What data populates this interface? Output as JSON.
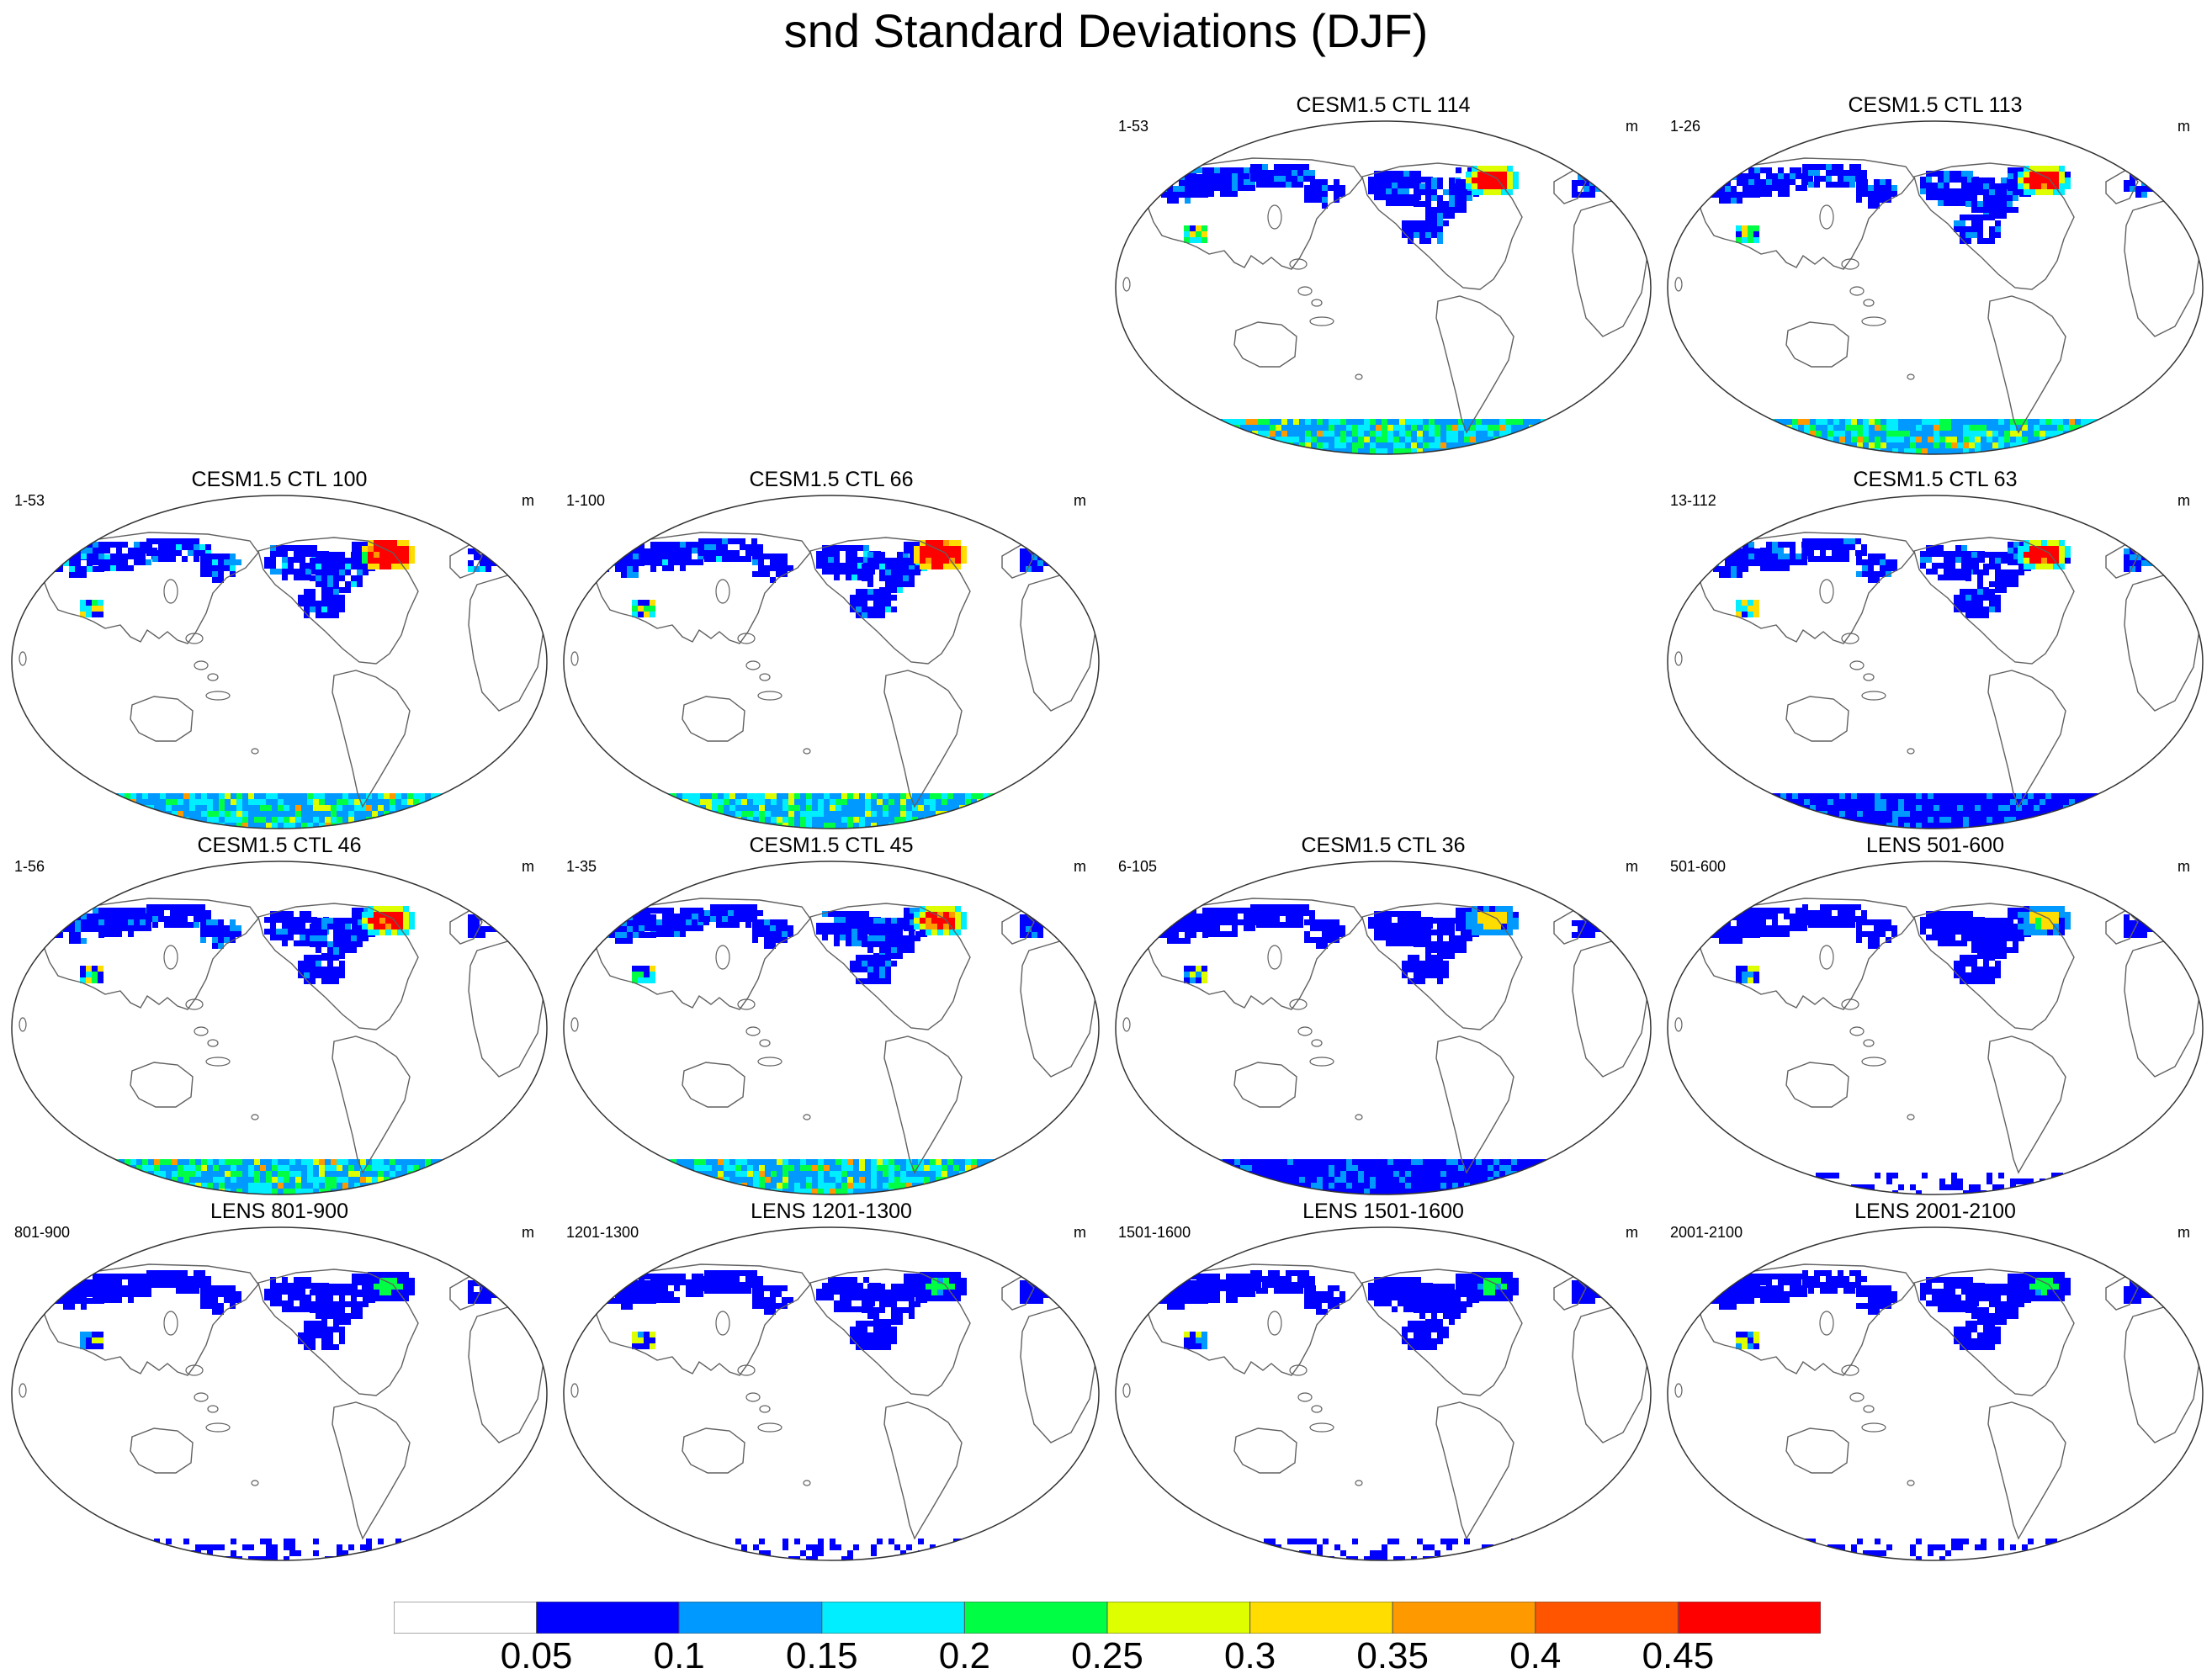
{
  "figure_title": "snd Standard Deviations (DJF)",
  "units_label": "m",
  "palette": {
    "land_outline": "#606060",
    "colors": [
      "#ffffff",
      "#0000ff",
      "#0099ff",
      "#00eeff",
      "#00ff44",
      "#ddff00",
      "#ffdd00",
      "#ff9900",
      "#ff5500",
      "#ff0000"
    ]
  },
  "colorbar": {
    "levels": [
      "0.05",
      "0.1",
      "0.15",
      "0.2",
      "0.25",
      "0.3",
      "0.35",
      "0.4",
      "0.45"
    ]
  },
  "panels": [
    {
      "title": "CESM1.5 CTL 114",
      "range": "1-53",
      "intensity": 3,
      "ant": 3
    },
    {
      "title": "CESM1.5 CTL 113",
      "range": "1-26",
      "intensity": 3,
      "ant": 3
    },
    {
      "title": "CESM1.5 CTL 100",
      "range": "1-53",
      "intensity": 4,
      "ant": 3
    },
    {
      "title": "CESM1.5 CTL 66",
      "range": "1-100",
      "intensity": 4,
      "ant": 2
    },
    {
      "title": "CESM1.5 CTL 63",
      "range": "13-112",
      "intensity": 3,
      "ant": 1
    },
    {
      "title": "CESM1.5 CTL 46",
      "range": "1-56",
      "intensity": 3,
      "ant": 3
    },
    {
      "title": "CESM1.5 CTL 45",
      "range": "1-35",
      "intensity": 3,
      "ant": 3
    },
    {
      "title": "CESM1.5 CTL 36",
      "range": "6-105",
      "intensity": 2,
      "ant": 1
    },
    {
      "title": "LENS 501-600",
      "range": "501-600",
      "intensity": 2,
      "ant": 0
    },
    {
      "title": "LENS 801-900",
      "range": "801-900",
      "intensity": 1,
      "ant": 0
    },
    {
      "title": "LENS 1201-1300",
      "range": "1201-1300",
      "intensity": 1,
      "ant": 0
    },
    {
      "title": "LENS 1501-1600",
      "range": "1501-1600",
      "intensity": 1,
      "ant": 0
    },
    {
      "title": "LENS 2001-2100",
      "range": "2001-2100",
      "intensity": 1,
      "ant": 0
    }
  ]
}
